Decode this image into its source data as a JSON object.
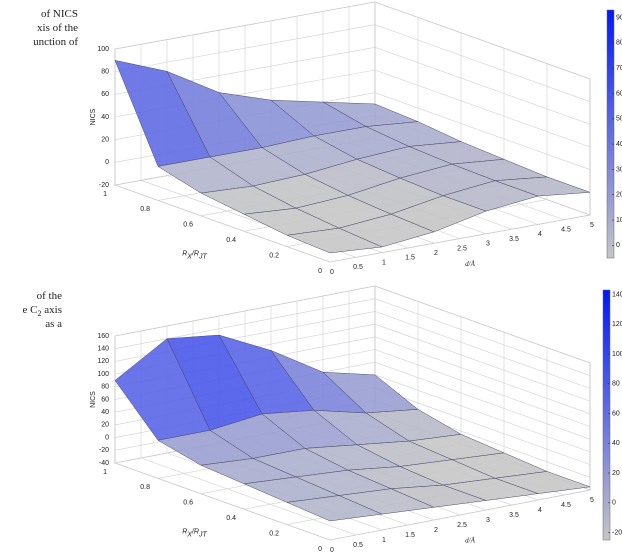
{
  "captions": [
    [
      [
        "of NICS"
      ],
      [
        "xis of the"
      ],
      [
        "unction of"
      ]
    ],
    [
      [
        "of the"
      ],
      [
        "e C",
        "2",
        " axis"
      ],
      [
        "as a"
      ]
    ]
  ],
  "chart_data": [
    {
      "type": "surface",
      "zlabel": "NICS",
      "xlabel": [
        "R",
        "X",
        "/R",
        "JT"
      ],
      "ylabel": "d/Å",
      "x": [
        0,
        0.2,
        0.4,
        0.6,
        0.8,
        1
      ],
      "y": [
        0,
        1,
        2,
        3,
        4,
        5
      ],
      "z": [
        [
          -12,
          -15,
          -10,
          0,
          5,
          0
        ],
        [
          -10,
          -12,
          -8,
          0,
          5,
          0
        ],
        [
          -5,
          -8,
          -5,
          2,
          6,
          2
        ],
        [
          0,
          -2,
          0,
          5,
          8,
          4
        ],
        [
          10,
          10,
          10,
          12,
          12,
          8
        ],
        [
          90,
          72,
          45,
          30,
          20,
          10
        ]
      ],
      "xlim": [
        0,
        1
      ],
      "xticks": [
        0,
        0.2,
        0.4,
        0.6,
        0.8,
        1
      ],
      "ylim": [
        0,
        5
      ],
      "yticks": [
        0,
        0.5,
        1,
        1.5,
        2,
        2.5,
        3,
        3.5,
        4,
        4.5,
        5
      ],
      "zlim": [
        -20,
        100
      ],
      "zticks": [
        -20,
        0,
        20,
        40,
        60,
        80,
        100
      ],
      "clim": [
        -5,
        93
      ],
      "cticks": [
        0,
        10,
        20,
        30,
        40,
        50,
        60,
        70,
        80,
        90
      ],
      "colormap": [
        "#c6c6c6",
        "#0018ff"
      ],
      "grid": true
    },
    {
      "type": "surface",
      "zlabel": "NICS",
      "xlabel": [
        "R",
        "X",
        "/R",
        "JT"
      ],
      "ylabel": "d/Å",
      "x": [
        0,
        0.2,
        0.4,
        0.6,
        0.8,
        1
      ],
      "y": [
        0,
        1,
        2,
        3,
        4,
        5
      ],
      "z": [
        [
          -10,
          -15,
          -20,
          -25,
          -30,
          -35
        ],
        [
          -5,
          -10,
          -15,
          -25,
          -30,
          -35
        ],
        [
          0,
          -5,
          -10,
          -20,
          -25,
          -30
        ],
        [
          5,
          0,
          0,
          -10,
          -20,
          -25
        ],
        [
          20,
          20,
          30,
          20,
          0,
          -10
        ],
        [
          90,
          140,
          130,
          90,
          40,
          20
        ]
      ],
      "xlim": [
        0,
        1
      ],
      "xticks": [
        0,
        0.2,
        0.4,
        0.6,
        0.8,
        1
      ],
      "ylim": [
        0,
        5
      ],
      "yticks": [
        0,
        0.5,
        1,
        1.5,
        2,
        2.5,
        3,
        3.5,
        4,
        4.5,
        5
      ],
      "zlim": [
        -40,
        160
      ],
      "zticks": [
        -40,
        -20,
        0,
        20,
        40,
        60,
        80,
        100,
        120,
        140,
        160
      ],
      "clim": [
        -25,
        143
      ],
      "cticks": [
        -20,
        0,
        20,
        40,
        60,
        80,
        100,
        120,
        140
      ],
      "colormap": [
        "#c6c6c6",
        "#0018ff"
      ],
      "grid": true
    }
  ]
}
